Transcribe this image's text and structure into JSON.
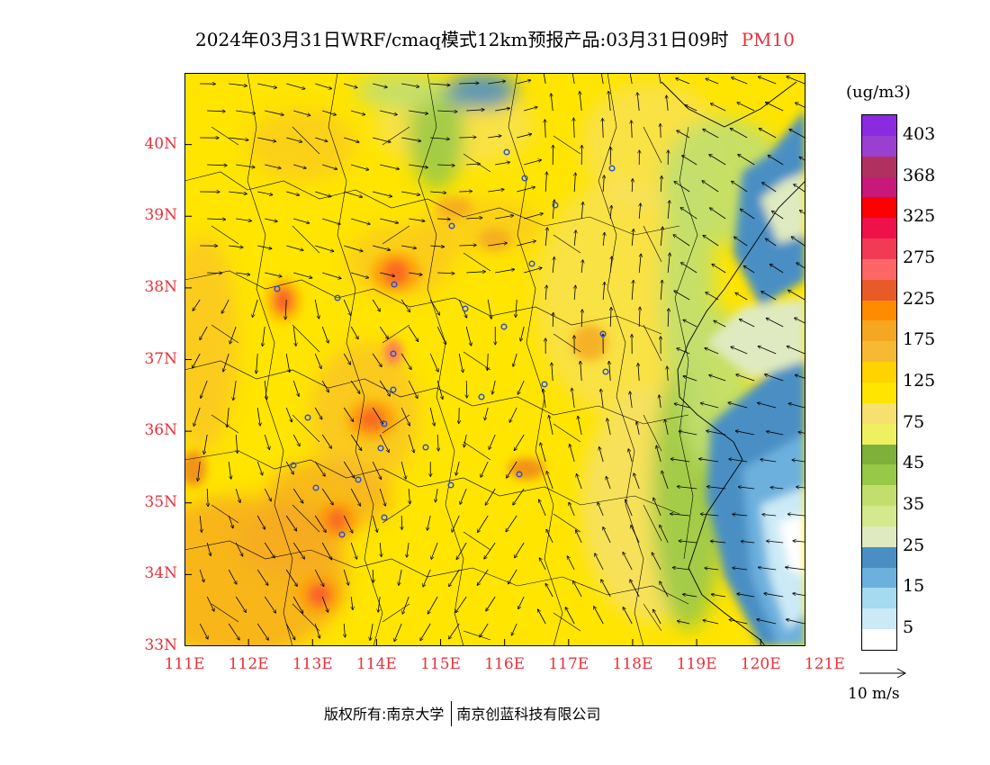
{
  "title": {
    "main": "2024年03月31日WRF/cmaq模式12km预报产品:03月31日09时",
    "variable": "PM10"
  },
  "map": {
    "lat_labels": [
      "33N",
      "34N",
      "35N",
      "36N",
      "37N",
      "38N",
      "39N",
      "40N"
    ],
    "lon_labels": [
      "111E",
      "112E",
      "113E",
      "114E",
      "115E",
      "116E",
      "117E",
      "118E",
      "119E",
      "120E",
      "121E"
    ],
    "lat_range": [
      33,
      41
    ],
    "lon_range": [
      111,
      120.7
    ]
  },
  "legend": {
    "unit": "(ug/m3)",
    "colors": [
      "#8a2be2",
      "#9b3fd0",
      "#b03060",
      "#c8187a",
      "#ff0000",
      "#f0104a",
      "#f23a55",
      "#ff6666",
      "#e85a28",
      "#ff8c00",
      "#f5a623",
      "#f7b833",
      "#ffd200",
      "#ffe500",
      "#f5e070",
      "#eef060",
      "#7fb03a",
      "#97c847",
      "#c2df6e",
      "#d4e88d",
      "#dfeac0",
      "#4a8fc4",
      "#6cb0de",
      "#a6daf0",
      "#cceaf6",
      "#ffffff"
    ],
    "labels": [
      "403",
      "368",
      "325",
      "275",
      "225",
      "175",
      "125",
      "75",
      "45",
      "35",
      "25",
      "15",
      "5"
    ]
  },
  "vector_key": {
    "label": "10 m/s"
  },
  "footer": {
    "left": "版权所有:南京大学",
    "right": "南京创蓝科技有限公司"
  }
}
